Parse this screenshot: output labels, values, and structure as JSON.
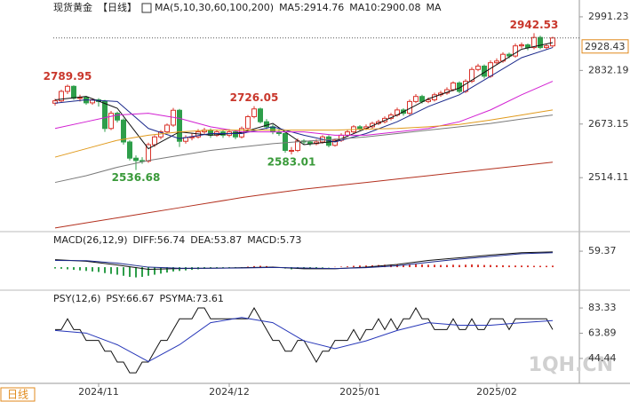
{
  "chart_data": [
    {
      "type": "candlestick",
      "title": "现货黄金",
      "period": "【日线】",
      "indicator": "MA(5,10,30,60,100,200)",
      "up_color": "#d9342b",
      "down_color": "#2e9e4a",
      "ylim": [
        2362,
        3020
      ],
      "yticks": [
        2991.23,
        2832.19,
        2673.15,
        2514.11
      ],
      "candles": [
        [
          2735,
          2748,
          2728,
          2742
        ],
        [
          2742,
          2775,
          2738,
          2770
        ],
        [
          2770,
          2789.95,
          2762,
          2785
        ],
        [
          2785,
          2788,
          2745,
          2750
        ],
        [
          2750,
          2760,
          2740,
          2752
        ],
        [
          2752,
          2756,
          2730,
          2736
        ],
        [
          2736,
          2750,
          2730,
          2745
        ],
        [
          2745,
          2750,
          2725,
          2740
        ],
        [
          2740,
          2745,
          2650,
          2660
        ],
        [
          2660,
          2712,
          2655,
          2705
        ],
        [
          2705,
          2710,
          2678,
          2685
        ],
        [
          2685,
          2690,
          2612,
          2620
        ],
        [
          2620,
          2625,
          2565,
          2572
        ],
        [
          2572,
          2580,
          2536.68,
          2565
        ],
        [
          2565,
          2575,
          2555,
          2563
        ],
        [
          2563,
          2618,
          2558,
          2612
        ],
        [
          2612,
          2640,
          2605,
          2635
        ],
        [
          2635,
          2655,
          2628,
          2650
        ],
        [
          2650,
          2675,
          2645,
          2670
        ],
        [
          2670,
          2721,
          2665,
          2714
        ],
        [
          2714,
          2718,
          2605,
          2622
        ],
        [
          2622,
          2640,
          2615,
          2633
        ],
        [
          2633,
          2645,
          2625,
          2635
        ],
        [
          2635,
          2658,
          2630,
          2650
        ],
        [
          2650,
          2662,
          2642,
          2655
        ],
        [
          2655,
          2660,
          2632,
          2640
        ],
        [
          2640,
          2656,
          2635,
          2650
        ],
        [
          2650,
          2655,
          2632,
          2640
        ],
        [
          2640,
          2658,
          2634,
          2650
        ],
        [
          2650,
          2654,
          2628,
          2635
        ],
        [
          2635,
          2666,
          2630,
          2660
        ],
        [
          2660,
          2700,
          2655,
          2695
        ],
        [
          2695,
          2726.05,
          2690,
          2718
        ],
        [
          2718,
          2722,
          2675,
          2680
        ],
        [
          2680,
          2688,
          2658,
          2665
        ],
        [
          2665,
          2672,
          2643,
          2650
        ],
        [
          2650,
          2658,
          2638,
          2645
        ],
        [
          2645,
          2652,
          2588,
          2595
        ],
        [
          2595,
          2605,
          2583.01,
          2595
        ],
        [
          2595,
          2630,
          2590,
          2623
        ],
        [
          2623,
          2628,
          2612,
          2620
        ],
        [
          2620,
          2625,
          2608,
          2615
        ],
        [
          2615,
          2628,
          2610,
          2620
        ],
        [
          2620,
          2640,
          2615,
          2635
        ],
        [
          2635,
          2640,
          2604,
          2610
        ],
        [
          2610,
          2630,
          2606,
          2625
        ],
        [
          2625,
          2646,
          2620,
          2640
        ],
        [
          2640,
          2656,
          2635,
          2650
        ],
        [
          2650,
          2670,
          2645,
          2665
        ],
        [
          2665,
          2670,
          2654,
          2660
        ],
        [
          2660,
          2672,
          2655,
          2665
        ],
        [
          2665,
          2680,
          2660,
          2675
        ],
        [
          2675,
          2686,
          2670,
          2680
        ],
        [
          2680,
          2696,
          2675,
          2690
        ],
        [
          2690,
          2706,
          2684,
          2700
        ],
        [
          2700,
          2722,
          2695,
          2715
        ],
        [
          2715,
          2720,
          2698,
          2705
        ],
        [
          2705,
          2746,
          2700,
          2740
        ],
        [
          2740,
          2762,
          2735,
          2755
        ],
        [
          2755,
          2760,
          2734,
          2740
        ],
        [
          2740,
          2752,
          2735,
          2745
        ],
        [
          2745,
          2766,
          2740,
          2760
        ],
        [
          2760,
          2772,
          2754,
          2765
        ],
        [
          2765,
          2782,
          2760,
          2775
        ],
        [
          2775,
          2800,
          2770,
          2795
        ],
        [
          2795,
          2800,
          2764,
          2770
        ],
        [
          2770,
          2806,
          2765,
          2800
        ],
        [
          2800,
          2842,
          2795,
          2835
        ],
        [
          2835,
          2852,
          2830,
          2845
        ],
        [
          2845,
          2850,
          2808,
          2815
        ],
        [
          2815,
          2862,
          2810,
          2855
        ],
        [
          2855,
          2868,
          2848,
          2860
        ],
        [
          2860,
          2886,
          2855,
          2880
        ],
        [
          2880,
          2885,
          2868,
          2875
        ],
        [
          2875,
          2912,
          2870,
          2905
        ],
        [
          2905,
          2915,
          2898,
          2908
        ],
        [
          2908,
          2912,
          2892,
          2900
        ],
        [
          2900,
          2942.53,
          2895,
          2930
        ],
        [
          2930,
          2935,
          2895,
          2900
        ],
        [
          2900,
          2912,
          2894,
          2905
        ],
        [
          2905,
          2932,
          2900,
          2928.43
        ]
      ],
      "x": [
        0,
        5,
        10,
        15,
        20,
        25,
        30,
        35,
        40,
        45,
        50,
        55,
        60,
        65,
        70,
        75,
        80
      ],
      "series": [
        {
          "legend": "MA5:2914.76",
          "color": "#111111",
          "values": [
            2745,
            2755,
            2720,
            2600,
            2650,
            2640,
            2648,
            2675,
            2612,
            2622,
            2660,
            2700,
            2748,
            2780,
            2838,
            2895,
            2914.76
          ]
        },
        {
          "legend": "MA10:2900.08",
          "color": "#1c2a8c",
          "values": [
            2735,
            2745,
            2740,
            2660,
            2630,
            2645,
            2645,
            2665,
            2640,
            2620,
            2645,
            2680,
            2725,
            2760,
            2815,
            2870,
            2900.08
          ]
        },
        {
          "legend": "MA",
          "color": "#d21fd2",
          "values": [
            2660,
            2680,
            2700,
            2705,
            2690,
            2665,
            2650,
            2650,
            2650,
            2640,
            2640,
            2650,
            2660,
            2680,
            2715,
            2760,
            2800
          ]
        },
        {
          "color": "#e09a1c",
          "values": [
            2575,
            2600,
            2625,
            2640,
            2650,
            2655,
            2655,
            2655,
            2655,
            2655,
            2658,
            2660,
            2665,
            2672,
            2685,
            2700,
            2715
          ]
        },
        {
          "color": "#7a7a7a",
          "values": [
            2500,
            2520,
            2545,
            2565,
            2580,
            2595,
            2605,
            2615,
            2622,
            2628,
            2635,
            2645,
            2655,
            2665,
            2675,
            2688,
            2700
          ]
        },
        {
          "color": "#b3301e",
          "values": [
            2365,
            2380,
            2395,
            2410,
            2425,
            2440,
            2455,
            2468,
            2480,
            2490,
            2500,
            2510,
            2520,
            2530,
            2540,
            2550,
            2560
          ]
        }
      ]
    },
    {
      "type": "macd",
      "title": "MACD(26,12,9)",
      "ylim": [
        -79,
        119
      ],
      "yticks": [
        59.37
      ],
      "x": [
        0,
        5,
        10,
        15,
        20,
        25,
        30,
        35,
        40,
        45,
        50,
        55,
        60,
        65,
        70,
        75,
        80
      ],
      "series": [
        {
          "legend": "DIFF:56.74",
          "color": "#111111",
          "values": [
            28,
            22,
            8,
            -8,
            -5,
            -4,
            -2,
            0,
            -6,
            -6,
            0,
            10,
            25,
            35,
            45,
            54,
            56.74
          ]
        },
        {
          "legend": "DEA:53.87",
          "color": "#1c2a8c",
          "values": [
            25,
            24,
            15,
            0,
            -4,
            -4,
            -3,
            -1,
            -3,
            -5,
            -2,
            5,
            18,
            30,
            40,
            50,
            53.87
          ]
        }
      ],
      "histogram": {
        "legend": "MACD:5.73",
        "color": "#d21fd2",
        "up_color": "#d9342b",
        "down_color": "#2e9e4a",
        "values": [
          -5,
          -6,
          -8,
          -10,
          -12,
          -14,
          -16,
          -18,
          -22,
          -25,
          -28,
          -32,
          -36,
          -38,
          -36,
          -32,
          -28,
          -24,
          -20,
          -16,
          -14,
          -12,
          -10,
          -8,
          -6,
          -4,
          -3,
          -2,
          -2,
          -3,
          -2,
          2,
          4,
          5,
          4,
          2,
          -2,
          -5,
          -8,
          -6,
          -5,
          -4,
          -3,
          -2,
          -1,
          1,
          2,
          3,
          5,
          6,
          6,
          7,
          8,
          9,
          10,
          10,
          9,
          10,
          11,
          10,
          9,
          9,
          8,
          8,
          9,
          8,
          9,
          10,
          9,
          8,
          8,
          7,
          7,
          6,
          6,
          6,
          6,
          5,
          5,
          5,
          5.73
        ]
      }
    },
    {
      "type": "psy",
      "title": "PSY(12,6)",
      "ylim": [
        26.6,
        95
      ],
      "yticks": [
        83.33,
        63.89,
        44.44
      ],
      "series": [
        {
          "legend": "PSY:66.67",
          "color": "#111111",
          "values": [
            66.67,
            66.67,
            75,
            66.67,
            66.67,
            58.33,
            58.33,
            58.33,
            50,
            50,
            41.67,
            41.67,
            33.33,
            33.33,
            41.67,
            41.67,
            50,
            58.33,
            58.33,
            66.67,
            75,
            75,
            75,
            83.33,
            83.33,
            75,
            75,
            75,
            75,
            75,
            75,
            75,
            83.33,
            75,
            66.67,
            58.33,
            58.33,
            50,
            50,
            58.33,
            58.33,
            50,
            41.67,
            50,
            50,
            58.33,
            58.33,
            58.33,
            66.67,
            58.33,
            66.67,
            66.67,
            75,
            66.67,
            75,
            66.67,
            75,
            75,
            83.33,
            75,
            75,
            66.67,
            66.67,
            66.67,
            75,
            66.67,
            66.67,
            75,
            66.67,
            66.67,
            75,
            75,
            75,
            66.67,
            75,
            75,
            75,
            75,
            75,
            75,
            66.67
          ]
        },
        {
          "legend": "PSYMA:73.61",
          "color": "#2636b8",
          "x": [
            0,
            5,
            10,
            15,
            20,
            25,
            30,
            35,
            40,
            45,
            50,
            55,
            60,
            65,
            70,
            75,
            80
          ],
          "values": [
            66,
            64,
            55,
            42,
            55,
            72,
            76,
            72,
            58,
            52,
            58,
            66,
            72,
            70,
            70,
            72,
            73.61
          ]
        }
      ]
    }
  ],
  "x_axis": {
    "xticks": [
      {
        "value": 7,
        "label": "2024/11"
      },
      {
        "value": 28,
        "label": "2024/12"
      },
      {
        "value": 49,
        "label": "2025/01"
      },
      {
        "value": 71,
        "label": "2025/02"
      }
    ]
  },
  "footer": {
    "period": "日线",
    "watermark": "1QH.CN"
  }
}
